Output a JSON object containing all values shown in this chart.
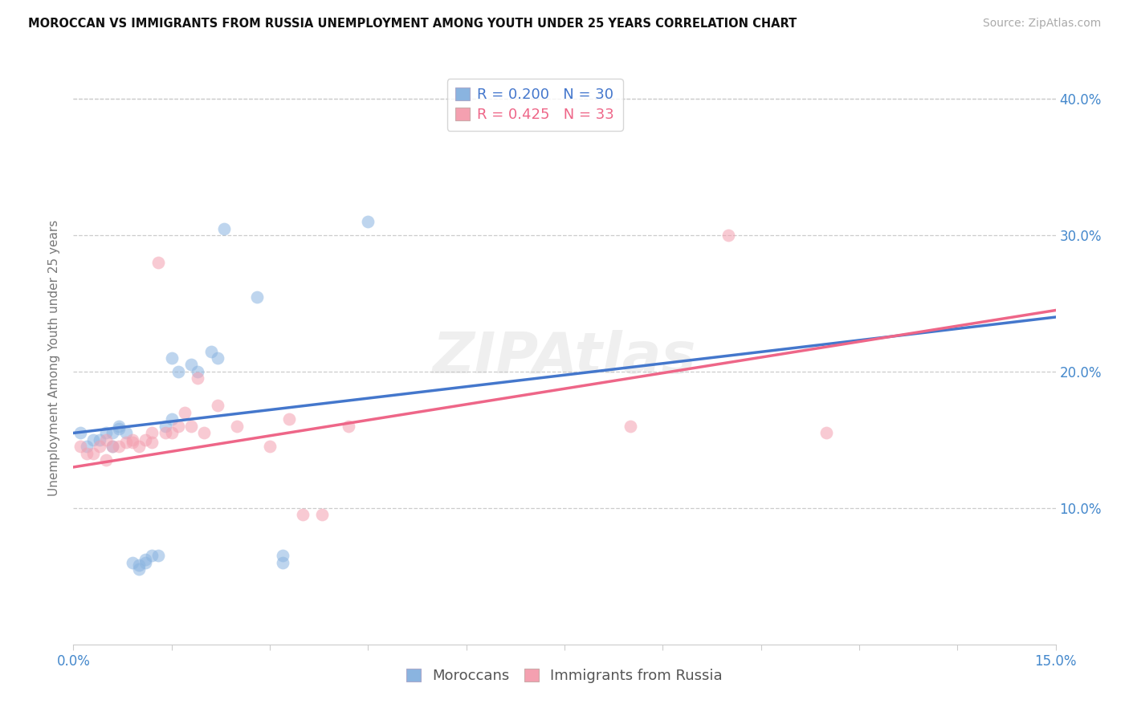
{
  "title": "MOROCCAN VS IMMIGRANTS FROM RUSSIA UNEMPLOYMENT AMONG YOUTH UNDER 25 YEARS CORRELATION CHART",
  "source": "Source: ZipAtlas.com",
  "ylabel": "Unemployment Among Youth under 25 years",
  "xlim": [
    0.0,
    0.15
  ],
  "ylim": [
    0.0,
    0.42
  ],
  "xtick_positions": [
    0.0,
    0.015,
    0.03,
    0.045,
    0.06,
    0.075,
    0.09,
    0.105,
    0.12,
    0.135,
    0.15
  ],
  "ytick_vals": [
    0.0,
    0.1,
    0.15,
    0.2,
    0.25,
    0.3,
    0.35,
    0.4
  ],
  "ytick_labels": [
    "",
    "10.0%",
    "",
    "20.0%",
    "",
    "30.0%",
    "",
    "40.0%"
  ],
  "legend_blue_r": "R = 0.200",
  "legend_blue_n": "N = 30",
  "legend_pink_r": "R = 0.425",
  "legend_pink_n": "N = 33",
  "blue_scatter_color": "#8AB4E0",
  "pink_scatter_color": "#F4A0B0",
  "blue_line_color": "#4477CC",
  "pink_line_color": "#EE6688",
  "moroccan_x": [
    0.001,
    0.002,
    0.003,
    0.004,
    0.005,
    0.006,
    0.006,
    0.007,
    0.007,
    0.008,
    0.009,
    0.01,
    0.01,
    0.011,
    0.011,
    0.012,
    0.013,
    0.014,
    0.015,
    0.015,
    0.016,
    0.018,
    0.019,
    0.021,
    0.022,
    0.023,
    0.028,
    0.032,
    0.032,
    0.045
  ],
  "moroccan_y": [
    0.155,
    0.145,
    0.15,
    0.15,
    0.155,
    0.145,
    0.155,
    0.158,
    0.16,
    0.155,
    0.06,
    0.055,
    0.058,
    0.06,
    0.062,
    0.065,
    0.065,
    0.16,
    0.165,
    0.21,
    0.2,
    0.205,
    0.2,
    0.215,
    0.21,
    0.305,
    0.255,
    0.06,
    0.065,
    0.31
  ],
  "russia_x": [
    0.001,
    0.002,
    0.003,
    0.004,
    0.005,
    0.005,
    0.006,
    0.007,
    0.008,
    0.009,
    0.009,
    0.01,
    0.011,
    0.012,
    0.012,
    0.013,
    0.014,
    0.015,
    0.016,
    0.017,
    0.018,
    0.019,
    0.02,
    0.022,
    0.025,
    0.03,
    0.033,
    0.035,
    0.038,
    0.042,
    0.085,
    0.1,
    0.115
  ],
  "russia_y": [
    0.145,
    0.14,
    0.14,
    0.145,
    0.135,
    0.15,
    0.145,
    0.145,
    0.148,
    0.15,
    0.148,
    0.145,
    0.15,
    0.148,
    0.155,
    0.28,
    0.155,
    0.155,
    0.16,
    0.17,
    0.16,
    0.195,
    0.155,
    0.175,
    0.16,
    0.145,
    0.165,
    0.095,
    0.095,
    0.16,
    0.16,
    0.3,
    0.155
  ],
  "background_color": "#FFFFFF",
  "watermark": "ZIPAtlas"
}
